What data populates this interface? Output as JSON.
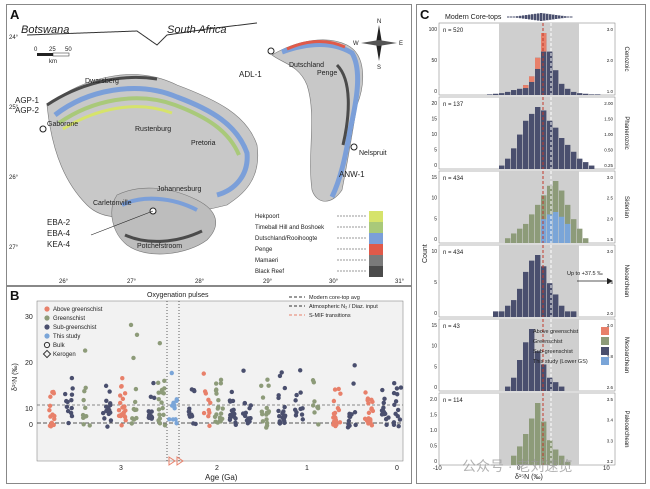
{
  "panelA": {
    "letter": "A",
    "countries": [
      "Botswana",
      "South Africa"
    ],
    "scale": {
      "ticks": [
        "0",
        "25",
        "50"
      ],
      "unit": "km"
    },
    "compass": [
      "N",
      "S",
      "E",
      "W"
    ],
    "places": [
      "Gaborone",
      "Rustenburg",
      "Pretoria",
      "Johannesburg",
      "Carletonville",
      "Potchefstroom",
      "Penge",
      "Nelspruit",
      "Dwarsberg",
      "Dutschland"
    ],
    "sites": [
      "AGP-1",
      "AGP-2",
      "ADL-1",
      "ANW-1",
      "EBA-2",
      "EBA-4",
      "KEA-4"
    ],
    "lat_ticks": [
      "24°",
      "25°",
      "26°",
      "27°"
    ],
    "lon_ticks": [
      "26°",
      "27°",
      "28°",
      "29°",
      "30°",
      "31°"
    ],
    "legend": [
      "Hekpoort",
      "Timeball Hill and Boshoek",
      "Dutschland/Rooihoogte",
      "Penge",
      "Mamaeri",
      "Black Reef"
    ],
    "legend_colors": [
      "#d6e36b",
      "#a9c97a",
      "#7b9fd9",
      "#e05a4a",
      "#7a7a7a",
      "#4b4b4b"
    ]
  },
  "panelB": {
    "letter": "B",
    "top_label": "Oxygenation pulses",
    "xlabel": "Age (Ga)",
    "ylabel": "δ¹⁵N (‰)",
    "xticks": [
      "3",
      "2",
      "1",
      "0"
    ],
    "yticks": [
      "30",
      "20",
      "10",
      "0"
    ],
    "legend": [
      {
        "label": "Above greenschist",
        "color": "#e8806a"
      },
      {
        "label": "Greenschist",
        "color": "#8d9b79"
      },
      {
        "label": "Sub-greenschist",
        "color": "#4a4f6e"
      },
      {
        "label": "This study",
        "color": "#7aa5d8"
      },
      {
        "label": "Bulk",
        "color": "#333333"
      },
      {
        "label": "Kerogen",
        "color": "#333333"
      }
    ],
    "lines_legend": [
      "Modern core-top avg",
      "Atmospheric N₂ / Diaz. input",
      "S-MIF transitions"
    ]
  },
  "panelC": {
    "letter": "C",
    "title": "Modern Core-tops",
    "xlabel": "δ¹⁵N (‰)",
    "ylabel": "Count",
    "xticks": [
      "-10",
      "0",
      "10"
    ],
    "annotation": "Up to +37.5 ‰",
    "legend": [
      {
        "label": "Above greenschist",
        "color": "#e8806a"
      },
      {
        "label": "Greenschist",
        "color": "#8d9b79"
      },
      {
        "label": "Sub-greenschist",
        "color": "#4a4f6e"
      },
      {
        "label": "This study (Lower GS)",
        "color": "#7aa5d8"
      }
    ],
    "subpanels": [
      {
        "eon": "Cenozoic",
        "n": "n = 520",
        "yticks": [
          "100",
          "50",
          "0"
        ],
        "rticks": [
          "3.0",
          "2.0",
          "1.0"
        ]
      },
      {
        "eon": "Phanerozoic",
        "n": "n = 137",
        "yticks": [
          "20",
          "15",
          "10",
          "5",
          "0"
        ],
        "rticks": [
          "2.00",
          "1.50",
          "1.00",
          "0.50",
          "0.25"
        ]
      },
      {
        "eon": "Siderian",
        "n": "n = 434",
        "yticks": [
          "15",
          "10",
          "5",
          "0"
        ],
        "rticks": [
          "3.0",
          "2.5",
          "2.0",
          "1.5"
        ]
      },
      {
        "eon": "Neoarchean",
        "n": "n = 434",
        "yticks": [
          "10",
          "5",
          "0"
        ],
        "rticks": [
          "3.0",
          "2.5",
          "2.0"
        ]
      },
      {
        "eon": "Mesoarchean",
        "n": "n = 43",
        "yticks": [
          "15",
          "10",
          "5",
          "0"
        ],
        "rticks": [
          "3.0",
          "2.8",
          "2.6"
        ]
      },
      {
        "eon": "Paleoarchean",
        "n": "n = 114",
        "yticks": [
          "2.0",
          "1.5",
          "1.0",
          "0.5",
          "0"
        ],
        "rticks": [
          "3.5",
          "3.4",
          "3.3",
          "3.2"
        ]
      }
    ]
  },
  "watermark": "公众号 · 老刘速览"
}
